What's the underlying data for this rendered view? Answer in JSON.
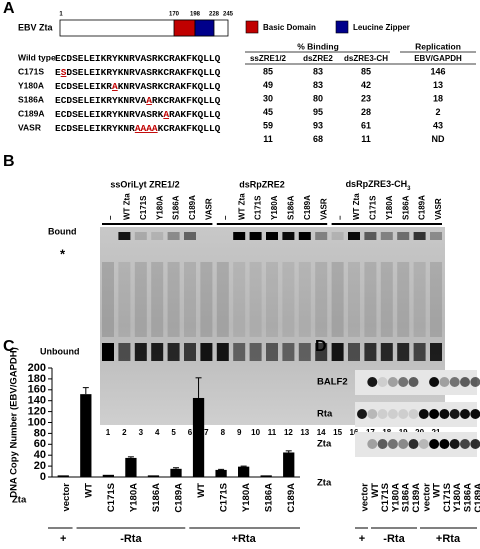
{
  "panel_a": {
    "label": "A",
    "protein": "EBV Zta",
    "positions": [
      1,
      170,
      198,
      228,
      245
    ],
    "legend": [
      "Basic Domain",
      "Leucine Zipper"
    ],
    "sequences": [
      {
        "name": "Wild type",
        "seq": [
          "ECDSELEIKRYKNRVASRKCRAKFKQLLQ"
        ]
      },
      {
        "name": "C171S",
        "seq": [
          "E",
          "S",
          "DSELEIKRYKNRVASRKCRAKFKQLLQ"
        ]
      },
      {
        "name": "Y180A",
        "seq": [
          "ECDSELEIKR",
          "A",
          "KNRVASRKCRAKFKQLLQ"
        ]
      },
      {
        "name": "S186A",
        "seq": [
          "ECDSELEIKRYKNRVA",
          "A",
          "RKCRAKFKQLLQ"
        ]
      },
      {
        "name": "C189A",
        "seq": [
          "ECDSELEIKRYKNRVASRK",
          "A",
          "RAKFKQLLQ"
        ]
      },
      {
        "name": "VASR",
        "seq": [
          "ECDSELEIKRYKNR",
          "AAAA",
          "KCRAKFKQLLQ"
        ]
      }
    ],
    "table": {
      "group_headers": [
        "% Binding",
        "Replication"
      ],
      "columns": [
        "ssZRE1/2",
        "dsZRE2",
        "dsZRE3-CH",
        "EBV/GAPDH"
      ],
      "rows": [
        [
          85,
          83,
          85,
          146
        ],
        [
          49,
          83,
          42,
          13
        ],
        [
          30,
          80,
          23,
          18
        ],
        [
          45,
          95,
          28,
          2
        ],
        [
          59,
          93,
          61,
          43
        ],
        [
          11,
          68,
          11,
          "ND"
        ]
      ]
    }
  },
  "panel_b": {
    "label": "B",
    "probes": [
      "ssOriLyt ZRE1/2",
      "dsRpZRE2",
      {
        "text": "dsRpZRE3-CH",
        "sub": "3"
      }
    ],
    "lanes": [
      "–",
      "WT Zta",
      "C171S",
      "Y180A",
      "S186A",
      "C189A",
      "VASR"
    ],
    "bound": "Bound",
    "star": "*",
    "unbound": "Unbound",
    "lane_numbers": [
      1,
      2,
      3,
      4,
      5,
      6,
      7,
      8,
      9,
      10,
      11,
      12,
      13,
      14,
      15,
      16,
      17,
      18,
      19,
      20,
      21
    ]
  },
  "chart_data": {
    "type": "bar",
    "label": "C",
    "y_label": "DNA Copy Number (EBV/GAPDH)",
    "x_label": "Zta",
    "categories": [
      "vector",
      "WT",
      "C171S",
      "Y180A",
      "S186A",
      "C189A",
      "WT",
      "C171S",
      "Y180A",
      "S186A",
      "C189A"
    ],
    "values": [
      3,
      152,
      4,
      35,
      3,
      15,
      145,
      13,
      19,
      3,
      45
    ],
    "errors": [
      0,
      12,
      0,
      2,
      0,
      2,
      37,
      1,
      1,
      0,
      3
    ],
    "groups": [
      "+",
      "-Rta",
      "+Rta"
    ],
    "color": "#000000",
    "ylim": [
      0,
      200
    ],
    "yticks": [
      0,
      20,
      40,
      60,
      80,
      100,
      120,
      140,
      160,
      180,
      200
    ]
  },
  "panel_d": {
    "label": "D",
    "rows": [
      "BALF2",
      "Rta",
      "Zta"
    ],
    "row_label": "Zta",
    "lanes": [
      "vector",
      "WT",
      "C171S",
      "Y180A",
      "S186A",
      "C189A",
      "vector",
      "WT",
      "C171S",
      "Y180A",
      "S186A",
      "C189A"
    ],
    "groups": [
      "+",
      "-Rta",
      "+Rta"
    ]
  }
}
